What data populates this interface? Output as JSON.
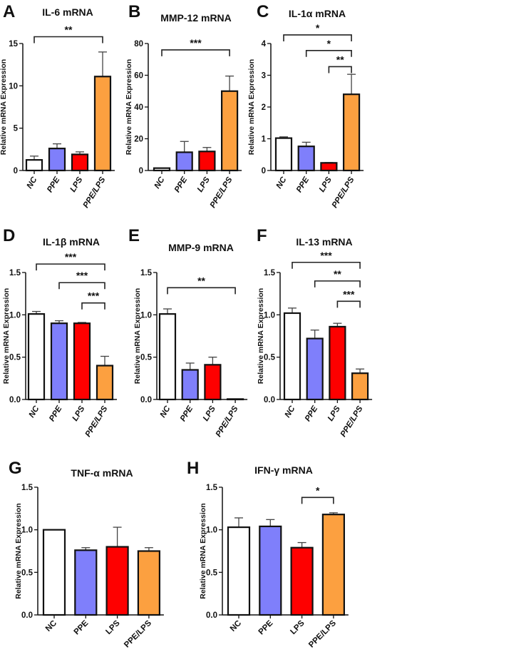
{
  "chart_data": [
    {
      "type": "bar",
      "letter": "A",
      "title": "IL-6 mRNA",
      "ylabel": "Relative mRNA Expression",
      "categories": [
        "NC",
        "PPE",
        "LPS",
        "PPE/LPS"
      ],
      "values": [
        1.25,
        2.6,
        1.9,
        11.1
      ],
      "errors": [
        0.45,
        0.55,
        0.3,
        2.9
      ],
      "ylim": [
        0,
        15
      ],
      "ticks": [
        {
          "v": 0,
          "label": "0"
        },
        {
          "v": 5,
          "label": "5"
        },
        {
          "v": 10,
          "label": "10"
        },
        {
          "v": 15,
          "label": "15"
        }
      ],
      "significance": [
        {
          "from": 0,
          "to": 3,
          "level": 15.8,
          "label": "**"
        }
      ]
    },
    {
      "type": "bar",
      "letter": "B",
      "title": "MMP-12 mRNA",
      "ylabel": "Relative mRNA Expression",
      "categories": [
        "NC",
        "PPE",
        "LPS",
        "PPE/LPS"
      ],
      "values": [
        1.5,
        11.5,
        12,
        50
      ],
      "errors": [
        0,
        6.8,
        2.5,
        9.5
      ],
      "ylim": [
        0,
        80
      ],
      "ticks": [
        {
          "v": 0,
          "label": "0"
        },
        {
          "v": 20,
          "label": "20"
        },
        {
          "v": 40,
          "label": "40"
        },
        {
          "v": 60,
          "label": "60"
        },
        {
          "v": 80,
          "label": "80"
        }
      ],
      "significance": [
        {
          "from": 0,
          "to": 3,
          "level": 76,
          "label": "***"
        }
      ]
    },
    {
      "type": "bar",
      "letter": "C",
      "title": "IL-1α mRNA",
      "ylabel": "Relative mRNA Expression",
      "categories": [
        "NC",
        "PPE",
        "LPS",
        "PPE/LPS"
      ],
      "values": [
        1.02,
        0.76,
        0.24,
        2.4
      ],
      "errors": [
        0.04,
        0.13,
        0.01,
        0.63
      ],
      "ylim": [
        0,
        4
      ],
      "ticks": [
        {
          "v": 0,
          "label": "0"
        },
        {
          "v": 1,
          "label": "1"
        },
        {
          "v": 2,
          "label": "2"
        },
        {
          "v": 3,
          "label": "3"
        },
        {
          "v": 4,
          "label": "4"
        }
      ],
      "significance": [
        {
          "from": 0,
          "to": 3,
          "level": 4.27,
          "label": "*"
        },
        {
          "from": 1,
          "to": 3,
          "level": 3.78,
          "label": "*"
        },
        {
          "from": 2,
          "to": 3,
          "level": 3.27,
          "label": "**"
        }
      ]
    },
    {
      "type": "bar",
      "letter": "D",
      "title": "IL-1β mRNA",
      "ylabel": "Relative mRNA Expression",
      "categories": [
        "NC",
        "PPE",
        "LPS",
        "PPE/LPS"
      ],
      "values": [
        1.01,
        0.9,
        0.9,
        0.4
      ],
      "errors": [
        0.03,
        0.03,
        0.01,
        0.11
      ],
      "ylim": [
        0,
        1.5
      ],
      "ticks": [
        {
          "v": 0,
          "label": "0.0"
        },
        {
          "v": 0.5,
          "label": "0.5"
        },
        {
          "v": 1,
          "label": "1.0"
        },
        {
          "v": 1.5,
          "label": "1.5"
        }
      ],
      "significance": [
        {
          "from": 0,
          "to": 3,
          "level": 1.6,
          "label": "***"
        },
        {
          "from": 1,
          "to": 3,
          "level": 1.38,
          "label": "***"
        },
        {
          "from": 2,
          "to": 3,
          "level": 1.14,
          "label": "***"
        }
      ]
    },
    {
      "type": "bar",
      "letter": "E",
      "title": "MMP-9 mRNA",
      "ylabel": "Relative mRNA Expression",
      "categories": [
        "NC",
        "PPE",
        "LPS",
        "PPE/LPS"
      ],
      "values": [
        1.01,
        0.35,
        0.41,
        0.005
      ],
      "errors": [
        0.06,
        0.08,
        0.09,
        0
      ],
      "ylim": [
        0,
        1.5
      ],
      "ticks": [
        {
          "v": 0,
          "label": "0.0"
        },
        {
          "v": 0.5,
          "label": "0.5"
        },
        {
          "v": 1,
          "label": "1.0"
        },
        {
          "v": 1.5,
          "label": "1.5"
        }
      ],
      "significance": [
        {
          "from": 0,
          "to": 3,
          "level": 1.32,
          "label": "**"
        }
      ]
    },
    {
      "type": "bar",
      "letter": "F",
      "title": "IL-13 mRNA",
      "ylabel": "Relative mRNA Expression",
      "categories": [
        "NC",
        "PPE",
        "LPS",
        "PPE/LPS"
      ],
      "values": [
        1.02,
        0.72,
        0.86,
        0.31
      ],
      "errors": [
        0.06,
        0.1,
        0.04,
        0.05
      ],
      "ylim": [
        0,
        1.5
      ],
      "ticks": [
        {
          "v": 0,
          "label": "0.0"
        },
        {
          "v": 0.5,
          "label": "0.5"
        },
        {
          "v": 1,
          "label": "1.0"
        },
        {
          "v": 1.5,
          "label": "1.5"
        }
      ],
      "significance": [
        {
          "from": 0,
          "to": 3,
          "level": 1.62,
          "label": "***"
        },
        {
          "from": 1,
          "to": 3,
          "level": 1.4,
          "label": "**"
        },
        {
          "from": 2,
          "to": 3,
          "level": 1.16,
          "label": "***"
        }
      ]
    },
    {
      "type": "bar",
      "letter": "G",
      "title": "TNF-α mRNA",
      "ylabel": "Relative mRNA Expression",
      "categories": [
        "NC",
        "PPE",
        "LPS",
        "PPE/LPS"
      ],
      "values": [
        1.0,
        0.76,
        0.8,
        0.75
      ],
      "errors": [
        0,
        0.03,
        0.23,
        0.04
      ],
      "ylim": [
        0,
        1.5
      ],
      "ticks": [
        {
          "v": 0,
          "label": "0.0"
        },
        {
          "v": 0.5,
          "label": "0.5"
        },
        {
          "v": 1,
          "label": "1.0"
        },
        {
          "v": 1.5,
          "label": "1.5"
        }
      ],
      "significance": []
    },
    {
      "type": "bar",
      "letter": "H",
      "title": "IFN-γ mRNA",
      "ylabel": "Relative mRNA Expression",
      "categories": [
        "NC",
        "PPE",
        "LPS",
        "PPE/LPS"
      ],
      "values": [
        1.03,
        1.04,
        0.79,
        1.18
      ],
      "errors": [
        0.11,
        0.08,
        0.06,
        0.02
      ],
      "ylim": [
        0,
        1.5
      ],
      "ticks": [
        {
          "v": 0,
          "label": "0.0"
        },
        {
          "v": 0.5,
          "label": "0.5"
        },
        {
          "v": 1,
          "label": "1.0"
        },
        {
          "v": 1.5,
          "label": "1.5"
        }
      ],
      "significance": [
        {
          "from": 2,
          "to": 3,
          "level": 1.38,
          "label": "*"
        }
      ]
    }
  ],
  "colors": {
    "NC": "#ffffff",
    "PPE": "#7f7ffb",
    "LPS": "#fe0000",
    "PPE/LPS": "#fca040",
    "stroke": "#111111"
  }
}
